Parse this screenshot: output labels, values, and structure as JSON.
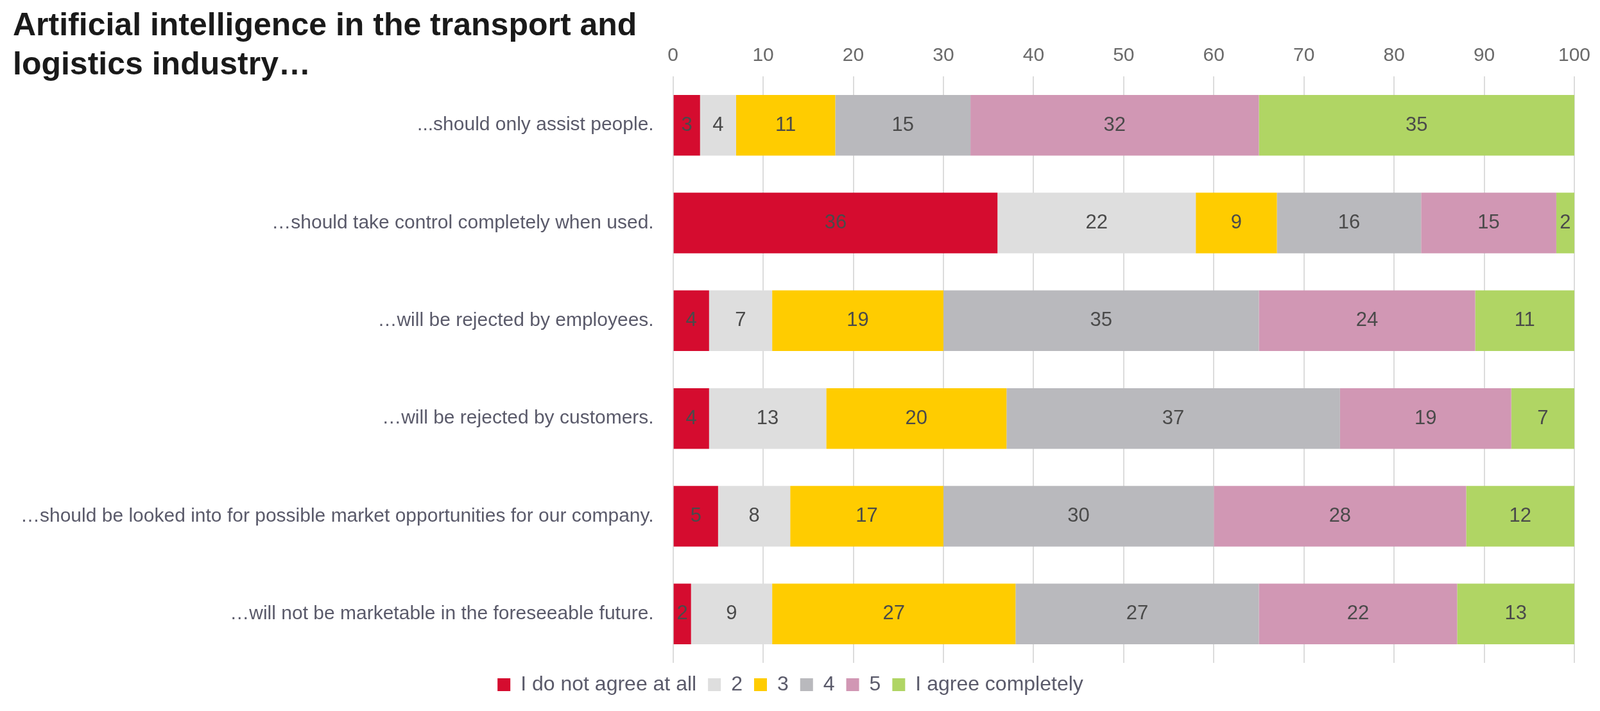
{
  "chart_data": {
    "type": "bar",
    "title": "Artificial intelligence in the transport and logistics industry…",
    "orientation": "horizontal",
    "stacked": true,
    "data_labels": true,
    "grid": true,
    "legend": "bottom",
    "categories": [
      "...should only assist people.",
      "…should take control completely when used.",
      "…will be rejected by employees.",
      "…will be rejected by customers.",
      "…should be looked into for possible market opportunities for our company.",
      "…will not be marketable in the foreseeable future."
    ],
    "xlim": [
      0,
      100
    ],
    "xticks": [
      0,
      10,
      20,
      30,
      40,
      50,
      60,
      70,
      80,
      90,
      100
    ],
    "series": [
      {
        "name": "I do not agree at all",
        "color": "#d50c2f",
        "values": [
          3,
          36,
          4,
          4,
          5,
          2
        ]
      },
      {
        "name": "2",
        "color": "#dedede",
        "values": [
          4,
          22,
          7,
          13,
          8,
          9
        ]
      },
      {
        "name": "3",
        "color": "#ffcc00",
        "values": [
          11,
          9,
          19,
          20,
          17,
          27
        ]
      },
      {
        "name": "4",
        "color": "#b9b9bd",
        "values": [
          15,
          16,
          35,
          37,
          30,
          27
        ]
      },
      {
        "name": "5",
        "color": "#d197b4",
        "values": [
          32,
          15,
          24,
          19,
          28,
          22
        ]
      },
      {
        "name": "I agree completely",
        "color": "#b0d564",
        "values": [
          35,
          2,
          11,
          7,
          12,
          13
        ]
      }
    ]
  }
}
